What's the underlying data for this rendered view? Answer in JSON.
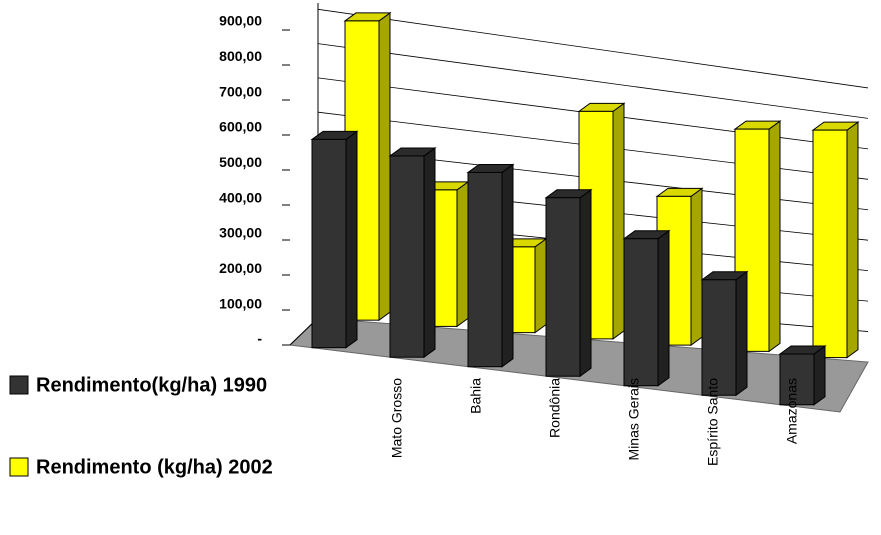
{
  "chart_data": {
    "type": "bar3d",
    "categories": [
      null,
      "Mato Grosso",
      "Bahia",
      "Rondônia",
      "Minas Gerais",
      "Espírito Santo",
      "Amazonas"
    ],
    "series": [
      {
        "name": "Rendimento(kg/ha) 1990",
        "color": "#333333",
        "values": [
          595,
          575,
          555,
          510,
          420,
          330,
          145
        ]
      },
      {
        "name": "Rendimento (kg/ha) 2002",
        "color": "#ffff00",
        "values": [
          855,
          390,
          245,
          650,
          425,
          635,
          650
        ]
      }
    ],
    "ylim": [
      0,
      900
    ],
    "yticks": [
      {
        "value": 0,
        "label": "-"
      },
      {
        "value": 100,
        "label": "100,00"
      },
      {
        "value": 200,
        "label": "200,00"
      },
      {
        "value": 300,
        "label": "300,00"
      },
      {
        "value": 400,
        "label": "400,00"
      },
      {
        "value": 500,
        "label": "500,00"
      },
      {
        "value": 600,
        "label": "600,00"
      },
      {
        "value": 700,
        "label": "700,00"
      },
      {
        "value": 800,
        "label": "800,00"
      },
      {
        "value": 900,
        "label": "900,00"
      }
    ],
    "grid": true,
    "legend": "left"
  }
}
